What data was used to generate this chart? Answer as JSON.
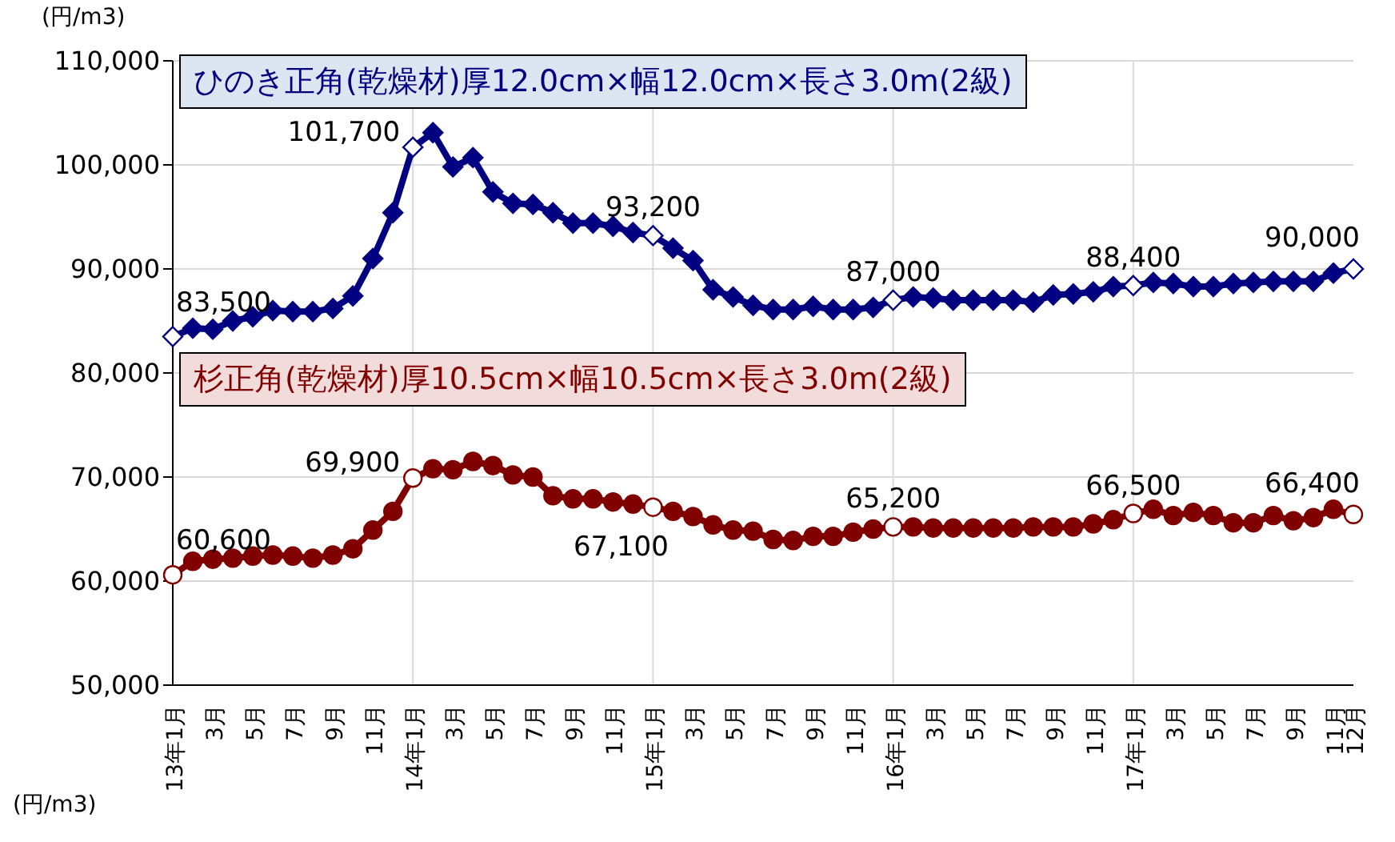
{
  "chart_data": {
    "type": "line",
    "ylabel": "(円/m3)",
    "annotations": [
      "(円/m3)"
    ],
    "categories": [
      "13年1月",
      null,
      "3月",
      null,
      "5月",
      null,
      "7月",
      null,
      "9月",
      null,
      "11月",
      null,
      "14年1月",
      null,
      "3月",
      null,
      "5月",
      null,
      "7月",
      null,
      "9月",
      null,
      "11月",
      null,
      "15年1月",
      null,
      "3月",
      null,
      "5月",
      null,
      "7月",
      null,
      "9月",
      null,
      "11月",
      null,
      "16年1月",
      null,
      "3月",
      null,
      "5月",
      null,
      "7月",
      null,
      "9月",
      null,
      "11月",
      null,
      "17年1月",
      null,
      "3月",
      null,
      "5月",
      null,
      "7月",
      null,
      "9月",
      null,
      "11月",
      "12月"
    ],
    "series": [
      {
        "name": "ひのき正角(乾燥材)厚12.0cm×幅12.0cm×長さ3.0m(2級)",
        "color": "#000080",
        "marker": "diamond",
        "values": [
          83500,
          84300,
          84200,
          85000,
          85400,
          86000,
          85900,
          85900,
          86200,
          87400,
          91000,
          95400,
          101700,
          103100,
          99800,
          100700,
          97400,
          96300,
          96200,
          95400,
          94400,
          94400,
          94100,
          93500,
          93200,
          92000,
          90800,
          88000,
          87300,
          86500,
          86100,
          86100,
          86400,
          86100,
          86100,
          86300,
          87000,
          87300,
          87200,
          87000,
          87000,
          87000,
          87000,
          86800,
          87500,
          87600,
          87800,
          88300,
          88400,
          88700,
          88600,
          88300,
          88300,
          88600,
          88700,
          88800,
          88800,
          88800,
          89600,
          90000
        ],
        "value_labels": [
          "83,500",
          null,
          null,
          null,
          null,
          null,
          null,
          null,
          null,
          null,
          null,
          null,
          "101,700",
          null,
          null,
          null,
          null,
          null,
          null,
          null,
          null,
          null,
          null,
          null,
          "93,200",
          null,
          null,
          null,
          null,
          null,
          null,
          null,
          null,
          null,
          null,
          null,
          "87,000",
          null,
          null,
          null,
          null,
          null,
          null,
          null,
          null,
          null,
          null,
          null,
          "88,400",
          null,
          null,
          null,
          null,
          null,
          null,
          null,
          null,
          null,
          null,
          "90,000"
        ]
      },
      {
        "name": "杉正角(乾燥材)厚10.5cm×幅10.5cm×長さ3.0m(2級)",
        "color": "#800000",
        "marker": "circle",
        "values": [
          60600,
          61900,
          62100,
          62200,
          62400,
          62500,
          62400,
          62200,
          62500,
          63100,
          64900,
          66700,
          69900,
          70800,
          70700,
          71500,
          71100,
          70200,
          70000,
          68200,
          67900,
          67900,
          67600,
          67400,
          67100,
          66700,
          66200,
          65400,
          64900,
          64800,
          64000,
          63900,
          64300,
          64300,
          64700,
          65000,
          65200,
          65200,
          65100,
          65100,
          65100,
          65100,
          65100,
          65200,
          65200,
          65200,
          65500,
          65900,
          66500,
          66900,
          66300,
          66600,
          66300,
          65600,
          65600,
          66300,
          65800,
          66100,
          66900,
          66400
        ],
        "value_labels": [
          "60,600",
          null,
          null,
          null,
          null,
          null,
          null,
          null,
          null,
          null,
          null,
          null,
          "69,900",
          null,
          null,
          null,
          null,
          null,
          null,
          null,
          null,
          null,
          null,
          null,
          "67,100",
          null,
          null,
          null,
          null,
          null,
          null,
          null,
          null,
          null,
          null,
          null,
          "65,200",
          null,
          null,
          null,
          null,
          null,
          null,
          null,
          null,
          null,
          null,
          null,
          "66,500",
          null,
          null,
          null,
          null,
          null,
          null,
          null,
          null,
          null,
          null,
          "66,400"
        ]
      }
    ],
    "ylim": [
      50000,
      110000
    ],
    "yticks": [
      {
        "value": 50000,
        "label": "50,000"
      },
      {
        "value": 60000,
        "label": "60,000"
      },
      {
        "value": 70000,
        "label": "70,000"
      },
      {
        "value": 80000,
        "label": "80,000"
      },
      {
        "value": 90000,
        "label": "90,000"
      },
      {
        "value": 100000,
        "label": "100,000"
      },
      {
        "value": 110000,
        "label": "110,000"
      }
    ],
    "grid": true,
    "legend": false,
    "line_style": "solid"
  }
}
